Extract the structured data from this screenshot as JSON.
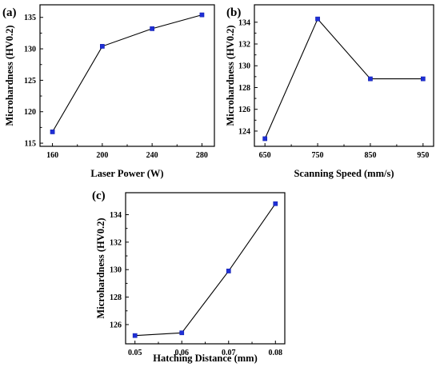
{
  "chart_data": [
    {
      "type": "line",
      "panel_label": "(a)",
      "xlabel": "Laser Power (W)",
      "ylabel": "Microhardness (HV0.2)",
      "x": [
        160,
        200,
        240,
        280
      ],
      "y": [
        116.8,
        130.4,
        133.2,
        135.4
      ],
      "xlim": [
        150,
        290
      ],
      "ylim": [
        114.5,
        137
      ],
      "xticks": [
        160,
        200,
        240,
        280
      ],
      "yticks": [
        115,
        120,
        125,
        130,
        135
      ],
      "marker_color": "#1f2fd6",
      "line_color": "#000000"
    },
    {
      "type": "line",
      "panel_label": "(b)",
      "xlabel": "Scanning Speed (mm/s)",
      "ylabel": "Microhardness (HV0.2)",
      "x": [
        650,
        750,
        850,
        950
      ],
      "y": [
        123.3,
        134.3,
        128.8,
        128.8
      ],
      "xlim": [
        630,
        970
      ],
      "ylim": [
        122.6,
        135.6
      ],
      "xticks": [
        650,
        750,
        850,
        950
      ],
      "yticks": [
        124,
        126,
        128,
        130,
        132,
        134
      ],
      "marker_color": "#1f2fd6",
      "line_color": "#000000"
    },
    {
      "type": "line",
      "panel_label": "(c)",
      "xlabel": "Hatching Distance (mm)",
      "ylabel": "Microhardness (HV0.2)",
      "x": [
        0.05,
        0.06,
        0.07,
        0.08
      ],
      "y": [
        125.2,
        125.4,
        129.9,
        134.8
      ],
      "xlim": [
        0.048,
        0.082
      ],
      "ylim": [
        124.6,
        135.6
      ],
      "xticks": [
        0.05,
        0.06,
        0.07,
        0.08
      ],
      "xtick_labels": [
        "0.05",
        "0.06",
        "0.07",
        "0.08"
      ],
      "yticks": [
        126,
        128,
        130,
        132,
        134
      ],
      "marker_color": "#1f2fd6",
      "line_color": "#000000"
    }
  ]
}
